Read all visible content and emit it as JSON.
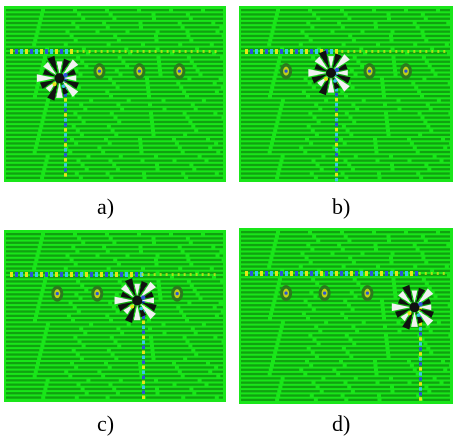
{
  "panels": [
    {
      "label": "a)",
      "spot": "large-left",
      "cyan_col": "left"
    },
    {
      "label": "b)",
      "spot": "large-mid",
      "cyan_col": "mid"
    },
    {
      "label": "c)",
      "spot": "large-right",
      "cyan_col": "right"
    },
    {
      "label": "d)",
      "spot": "large-far",
      "cyan_col": "far"
    }
  ],
  "colors": {
    "field": "#19e619",
    "digits": "#0a6a0a",
    "sensor": "#2b7a1f",
    "highlight_cyan": "#39c6e6",
    "highlight_yellow": "#e6e615",
    "highlight_blue": "#2a54d8",
    "burst_dark": "#111111",
    "burst_white": "#f2f2f2"
  },
  "icons": [
    "digit-grid-texture",
    "sensor-node-icon",
    "event-burst-icon",
    "trail-icon"
  ]
}
